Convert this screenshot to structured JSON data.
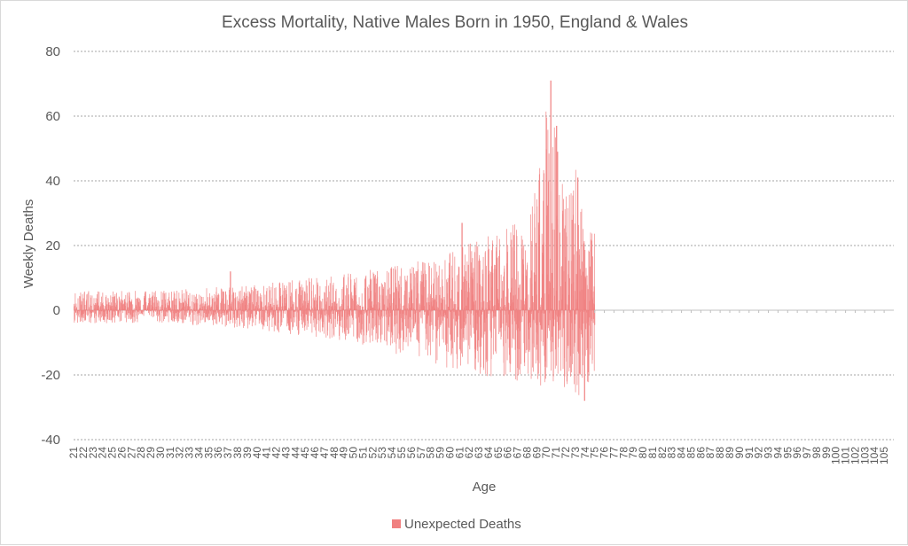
{
  "chart_data": {
    "type": "bar",
    "title": "Excess Mortality, Native Males Born in 1950, England & Wales",
    "xlabel": "Age",
    "ylabel": "Weekly Deaths",
    "ylim": [
      -40,
      80
    ],
    "y_ticks": [
      -40,
      -20,
      0,
      20,
      40,
      60,
      80
    ],
    "x_tick_labels": [
      "21",
      "22",
      "23",
      "24",
      "25",
      "26",
      "27",
      "28",
      "29",
      "30",
      "31",
      "32",
      "33",
      "34",
      "35",
      "36",
      "37",
      "38",
      "39",
      "40",
      "41",
      "42",
      "43",
      "44",
      "45",
      "46",
      "47",
      "48",
      "49",
      "50",
      "51",
      "52",
      "53",
      "54",
      "55",
      "56",
      "57",
      "58",
      "59",
      "60",
      "61",
      "62",
      "63",
      "64",
      "65",
      "66",
      "67",
      "68",
      "69",
      "70",
      "71",
      "72",
      "73",
      "74",
      "75",
      "76",
      "77",
      "78",
      "79",
      "80",
      "81",
      "82",
      "83",
      "84",
      "85",
      "86",
      "87",
      "88",
      "89",
      "90",
      "91",
      "92",
      "93",
      "94",
      "95",
      "96",
      "97",
      "98",
      "99",
      "100",
      "101",
      "102",
      "103",
      "104",
      "105"
    ],
    "age_range": [
      21,
      105
    ],
    "weeks_per_year": 52,
    "grid": true,
    "legend_position": "bottom",
    "series": [
      {
        "name": "Unexpected Deaths",
        "color": "#f08080",
        "data_ages": [
          21,
          74
        ],
        "envelope_ages": [
          21,
          25,
          30,
          35,
          40,
          45,
          50,
          55,
          60,
          63,
          66,
          68,
          69,
          70,
          71,
          72,
          73,
          74
        ],
        "envelope_max": [
          6,
          6,
          6,
          7,
          8,
          10,
          12,
          14,
          18,
          22,
          26,
          28,
          40,
          70,
          55,
          40,
          44,
          24
        ],
        "envelope_min": [
          -4,
          -4,
          -4,
          -5,
          -6,
          -8,
          -10,
          -14,
          -18,
          -22,
          -22,
          -22,
          -24,
          -24,
          -24,
          -25,
          -28,
          -25
        ],
        "peak_points": [
          {
            "age": 37.2,
            "value": 12
          },
          {
            "age": 61.2,
            "value": 27
          },
          {
            "age": 70.4,
            "value": 71
          },
          {
            "age": 71.0,
            "value": 57
          },
          {
            "age": 71.1,
            "value": 49
          },
          {
            "age": 73.2,
            "value": 41
          },
          {
            "age": 73.9,
            "value": -28
          }
        ],
        "post_data_level": 0
      }
    ]
  }
}
